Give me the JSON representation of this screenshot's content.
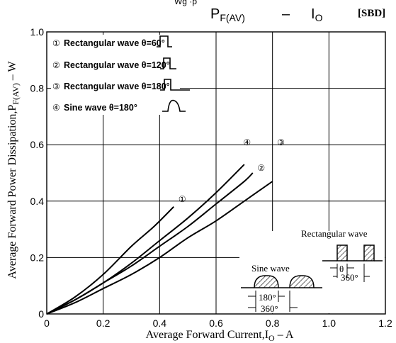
{
  "header": {
    "title_left": "P",
    "title_left_sub": "F(AV)",
    "title_dash": "–",
    "title_right": "I",
    "title_right_sub": "O",
    "tag": "[SBD]",
    "top_fragment": "Wg ·p"
  },
  "chart_data": {
    "type": "line",
    "xlabel": "Average Forward Current,I",
    "xlabel_sub": "O",
    "xlabel_unit": " – A",
    "ylabel": "Average Forward Power Dissipation,P",
    "ylabel_sub": "F(AV)",
    "ylabel_unit": " – W",
    "xlim": [
      0,
      1.2
    ],
    "ylim": [
      0,
      1.0
    ],
    "x_ticks": [
      0,
      0.2,
      0.4,
      0.6,
      0.8,
      1.0,
      1.2
    ],
    "x_tick_labels": [
      "0",
      "0.2",
      "0.4",
      "0.6",
      "0.8",
      "1.0",
      "1.2"
    ],
    "y_ticks": [
      0,
      0.2,
      0.4,
      0.6,
      0.8,
      1.0
    ],
    "y_tick_labels": [
      "0",
      "0.2",
      "0.4",
      "0.6",
      "0.8",
      "1.0"
    ],
    "grid": true,
    "series": [
      {
        "marker": "①",
        "label": "Rectangular wave θ=60°",
        "x": [
          0,
          0.1,
          0.2,
          0.3,
          0.38,
          0.45
        ],
        "y": [
          0,
          0.06,
          0.14,
          0.24,
          0.31,
          0.38
        ],
        "marker_pos": [
          0.48,
          0.41
        ]
      },
      {
        "marker": "②",
        "label": "Rectangular wave θ=120°",
        "x": [
          0,
          0.1,
          0.2,
          0.3,
          0.4,
          0.5,
          0.6,
          0.7,
          0.73
        ],
        "y": [
          0,
          0.05,
          0.11,
          0.17,
          0.24,
          0.31,
          0.39,
          0.47,
          0.5
        ],
        "marker_pos": [
          0.76,
          0.52
        ]
      },
      {
        "marker": "③",
        "label": "Rectangular wave θ=180°",
        "x": [
          0,
          0.1,
          0.2,
          0.3,
          0.4,
          0.5,
          0.6,
          0.7,
          0.8
        ],
        "y": [
          0,
          0.04,
          0.09,
          0.14,
          0.2,
          0.27,
          0.33,
          0.4,
          0.47
        ],
        "marker_pos": [
          0.83,
          0.61
        ]
      },
      {
        "marker": "④",
        "label": "Sine wave θ=180°",
        "x": [
          0,
          0.1,
          0.2,
          0.3,
          0.4,
          0.5,
          0.6,
          0.7
        ],
        "y": [
          0,
          0.05,
          0.11,
          0.18,
          0.26,
          0.34,
          0.43,
          0.53
        ],
        "marker_pos": [
          0.71,
          0.61
        ]
      }
    ]
  },
  "inset": {
    "rect_label": "Rectangular wave",
    "sine_label": "Sine wave",
    "theta": "θ",
    "rect_period": "360°",
    "sine_half": "180°",
    "sine_period": "360°"
  }
}
